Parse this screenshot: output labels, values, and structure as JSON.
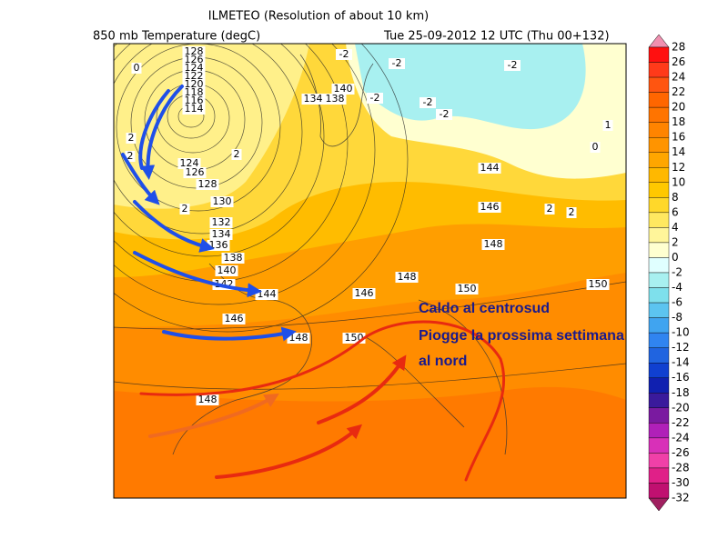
{
  "header": {
    "title": "ILMETEO  (Resolution of about 10 km)",
    "field": "850 mb Temperature (degC)",
    "valid": "Tue 25-09-2012 12 UTC (Thu 00+132)"
  },
  "colorbar": {
    "levels": [
      28,
      26,
      24,
      22,
      20,
      18,
      16,
      14,
      12,
      10,
      8,
      6,
      4,
      2,
      0,
      -2,
      -4,
      -6,
      -8,
      -10,
      -12,
      -14,
      -16,
      -18,
      -20,
      -22,
      -24,
      -26,
      -28,
      -30,
      -32
    ],
    "colors": [
      "#ff1010",
      "#ff3a1a",
      "#ff5510",
      "#ff6600",
      "#ff7400",
      "#ff8400",
      "#ff9400",
      "#ffa600",
      "#ffb800",
      "#ffc800",
      "#ffd82a",
      "#ffe860",
      "#fff59a",
      "#ffffd0",
      "#e0ffff",
      "#a8f0f0",
      "#7ee0ec",
      "#5cc4f0",
      "#40a4f0",
      "#3084f0",
      "#2064e0",
      "#1040d0",
      "#1020b0",
      "#3a1a9c",
      "#7a1aa0",
      "#b020b8",
      "#d830b8",
      "#f040a8",
      "#e02088",
      "#c01070"
    ],
    "over_color": "#f090b0",
    "under_color": "#a02060"
  },
  "contour_labels": [
    "128",
    "126",
    "124",
    "122",
    "120",
    "118",
    "116",
    "114",
    "124",
    "126",
    "128",
    "130",
    "132",
    "134",
    "136",
    "138",
    "140",
    "142",
    "144",
    "146",
    "148",
    "150",
    "148",
    "146",
    "148",
    "150",
    "146",
    "148",
    "144",
    "150",
    "140",
    "134",
    "138",
    "-2",
    "-2",
    "-2",
    "-2",
    "-2",
    "-2",
    "2",
    "2",
    "0",
    "1",
    "0",
    "2",
    "2",
    "2",
    "2"
  ],
  "annotations": [
    "Caldo al centrosud",
    "Piogge la prossima settimana",
    "al nord"
  ]
}
